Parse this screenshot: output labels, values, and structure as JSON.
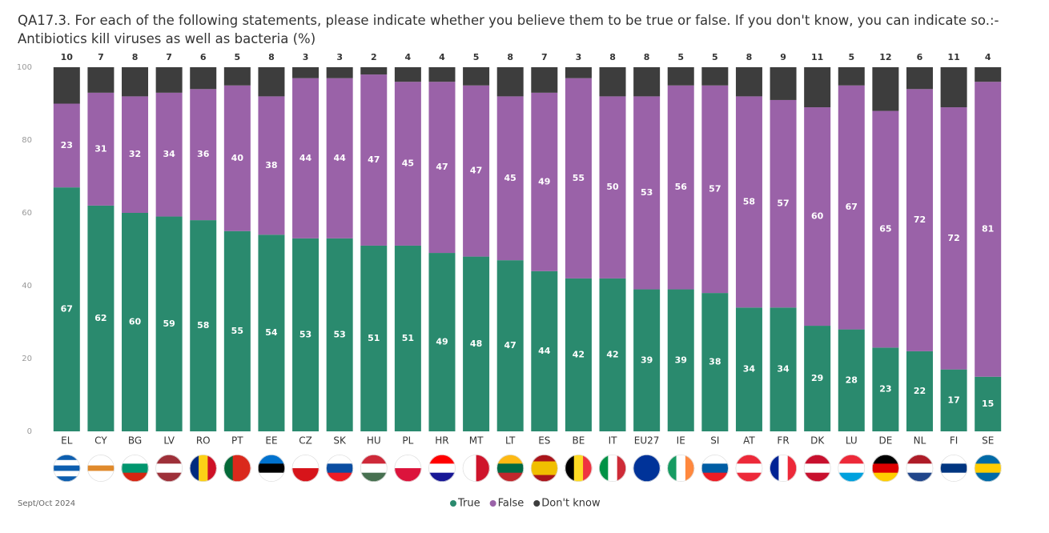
{
  "chart_data": {
    "type": "stacked-bar",
    "title": "QA17.3. For each of the following statements, please indicate whether you believe them to be true or false. If you don't know, you can indicate so.:-Antibiotics kill viruses as well as bacteria (%)",
    "note": "Sept/Oct 2024",
    "categories": [
      "EL",
      "CY",
      "BG",
      "LV",
      "RO",
      "PT",
      "EE",
      "CZ",
      "SK",
      "HU",
      "PL",
      "HR",
      "MT",
      "LT",
      "ES",
      "BE",
      "IT",
      "EU27",
      "IE",
      "SI",
      "AT",
      "FR",
      "DK",
      "LU",
      "DE",
      "NL",
      "FI",
      "SE"
    ],
    "series": [
      {
        "name": "True",
        "color": "#2a8a6e",
        "values": [
          67,
          62,
          60,
          59,
          58,
          55,
          54,
          53,
          53,
          51,
          51,
          49,
          48,
          47,
          44,
          42,
          42,
          39,
          39,
          38,
          34,
          34,
          29,
          28,
          23,
          22,
          17,
          15
        ]
      },
      {
        "name": "False",
        "color": "#9a62a8",
        "values": [
          23,
          31,
          32,
          34,
          36,
          40,
          38,
          44,
          44,
          47,
          45,
          47,
          47,
          45,
          49,
          55,
          50,
          53,
          56,
          57,
          58,
          57,
          60,
          67,
          65,
          72,
          72,
          81
        ]
      },
      {
        "name": "Don't know",
        "color": "#3d3d3d",
        "values": [
          10,
          7,
          8,
          7,
          6,
          5,
          8,
          3,
          3,
          2,
          4,
          4,
          5,
          8,
          7,
          3,
          8,
          8,
          5,
          5,
          8,
          9,
          11,
          5,
          12,
          6,
          11,
          4
        ]
      }
    ],
    "ylim": [
      0,
      100
    ],
    "yticks": [
      0,
      20,
      40,
      60,
      80,
      100
    ],
    "grid": false
  }
}
